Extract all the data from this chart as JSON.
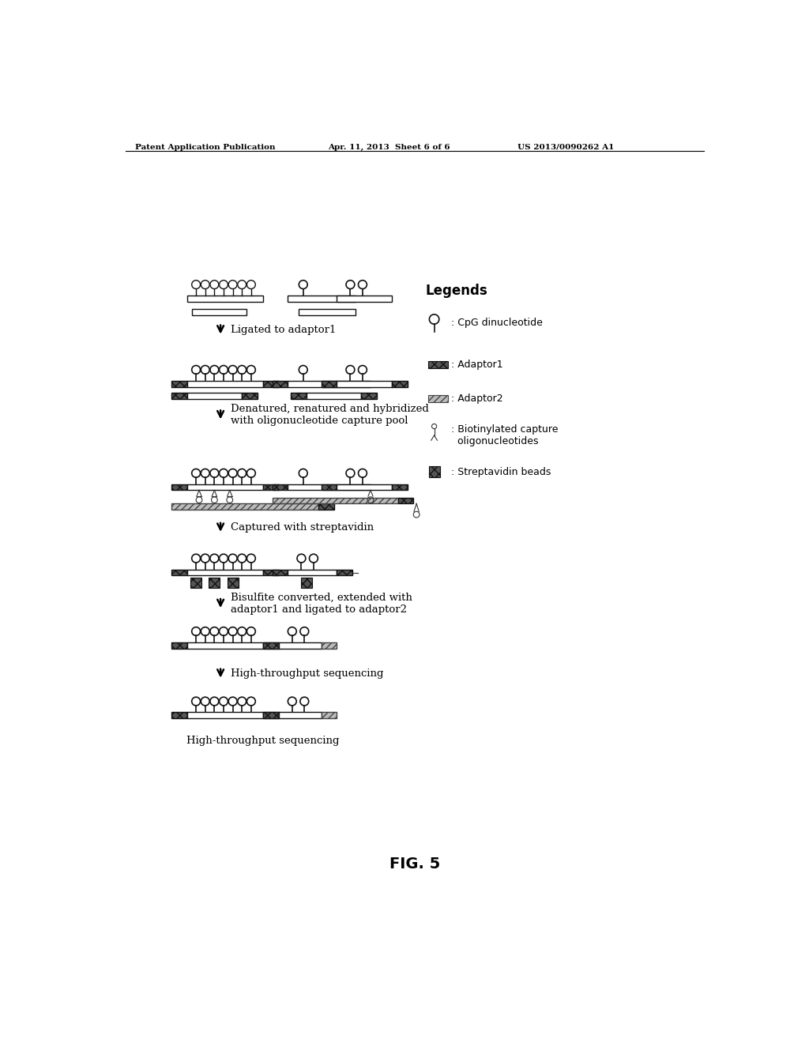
{
  "header_left": "Patent Application Publication",
  "header_mid": "Apr. 11, 2013  Sheet 6 of 6",
  "header_right": "US 2013/0090262 A1",
  "fig_label": "FIG. 5",
  "legend_title": "Legends",
  "legend_items": [
    {
      "symbol": "cpg",
      "text": ": CpG dinucleotide"
    },
    {
      "symbol": "adaptor1",
      "text": ": Adaptor1"
    },
    {
      "symbol": "adaptor2",
      "text": ": Adaptor2"
    },
    {
      "symbol": "biotin",
      "text": ": Biotinylated capture\n  oligonucleotides"
    },
    {
      "symbol": "streptavidin",
      "text": ": Streptavidin beads"
    }
  ],
  "steps": [
    {
      "arrow": false,
      "label": ""
    },
    {
      "arrow": true,
      "label": "Ligated to adaptor1"
    },
    {
      "arrow": true,
      "label": "Denatured, renatured and hybridized\nwith oligonucleotide capture pool"
    },
    {
      "arrow": true,
      "label": "Captured with streptavidin"
    },
    {
      "arrow": true,
      "label": "Bisulfite converted, extended with\nadaptor1 and ligated to adaptor2"
    },
    {
      "arrow": true,
      "label": "High-throughput sequencing"
    }
  ],
  "bg_color": "#ffffff",
  "text_color": "#000000"
}
